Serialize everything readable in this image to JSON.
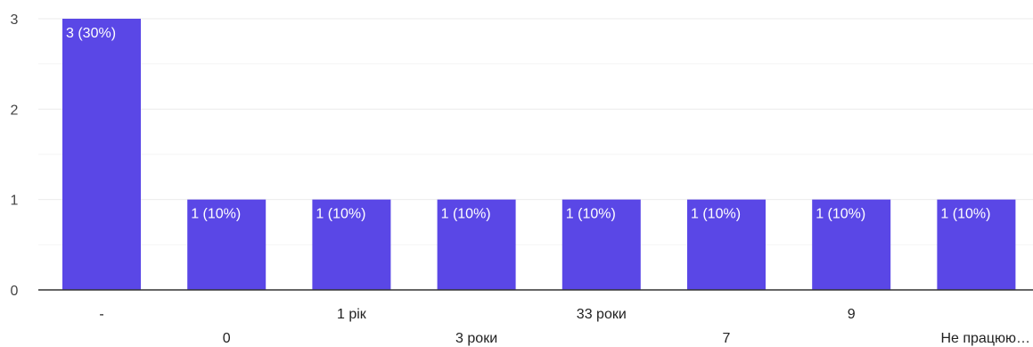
{
  "chart_data": {
    "type": "bar",
    "categories": [
      "-",
      "0",
      "1 рік",
      "3 роки",
      "33 роки",
      "7",
      "9",
      "Не працюю…"
    ],
    "values": [
      3,
      1,
      1,
      1,
      1,
      1,
      1,
      1
    ],
    "data_labels": [
      "3 (30%)",
      "1 (10%)",
      "1 (10%)",
      "1 (10%)",
      "1 (10%)",
      "1 (10%)",
      "1 (10%)",
      "1 (10%)"
    ],
    "y_ticks": [
      "0",
      "1",
      "2",
      "3"
    ],
    "ylim": [
      0,
      3
    ],
    "grid": true,
    "title": "",
    "xlabel": "",
    "ylabel": "",
    "colors": {
      "bar": "#5a47e6"
    }
  }
}
